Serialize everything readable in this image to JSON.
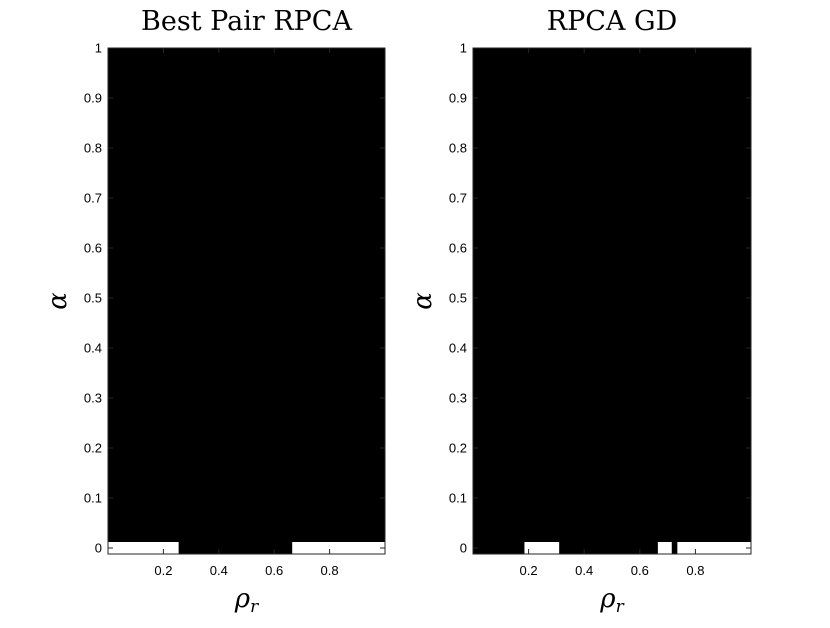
{
  "chart_data": [
    {
      "type": "heatmap",
      "title": "Best Pair RPCA",
      "xlabel": "ρ",
      "xlabel_sub": "r",
      "ylabel": "α",
      "xlim": [
        0.0,
        1.0
      ],
      "ylim": [
        -0.012,
        1.0
      ],
      "xticks": [
        0.2,
        0.4,
        0.6,
        0.8
      ],
      "xtick_labels": [
        "0.2",
        "0.4",
        "0.6",
        "0.8"
      ],
      "yticks": [
        0,
        0.1,
        0.2,
        0.3,
        0.4,
        0.5,
        0.6,
        0.7,
        0.8,
        0.9,
        1
      ],
      "ytick_labels": [
        "0",
        "0.1",
        "0.2",
        "0.3",
        "0.4",
        "0.5",
        "0.6",
        "0.7",
        "0.8",
        "0.9",
        "1"
      ],
      "background_value": "black",
      "success_row": {
        "alpha_range": [
          -0.012,
          0.012
        ],
        "intervals": [
          [
            0.0,
            0.255
          ],
          [
            0.665,
            1.0
          ]
        ]
      },
      "colors": {
        "fail": "#000000",
        "success": "#ffffff"
      }
    },
    {
      "type": "heatmap",
      "title": "RPCA GD",
      "xlabel": "ρ",
      "xlabel_sub": "r",
      "ylabel": "α",
      "xlim": [
        0.0,
        1.0
      ],
      "ylim": [
        -0.012,
        1.0
      ],
      "xticks": [
        0.2,
        0.4,
        0.6,
        0.8
      ],
      "xtick_labels": [
        "0.2",
        "0.4",
        "0.6",
        "0.8"
      ],
      "yticks": [
        0,
        0.1,
        0.2,
        0.3,
        0.4,
        0.5,
        0.6,
        0.7,
        0.8,
        0.9,
        1
      ],
      "ytick_labels": [
        "0",
        "0.1",
        "0.2",
        "0.3",
        "0.4",
        "0.5",
        "0.6",
        "0.7",
        "0.8",
        "0.9",
        "1"
      ],
      "background_value": "black",
      "success_row": {
        "alpha_range": [
          -0.012,
          0.012
        ],
        "intervals": [
          [
            0.185,
            0.31
          ],
          [
            0.665,
            0.715
          ],
          [
            0.735,
            1.0
          ]
        ]
      },
      "colors": {
        "fail": "#000000",
        "success": "#ffffff"
      }
    }
  ]
}
